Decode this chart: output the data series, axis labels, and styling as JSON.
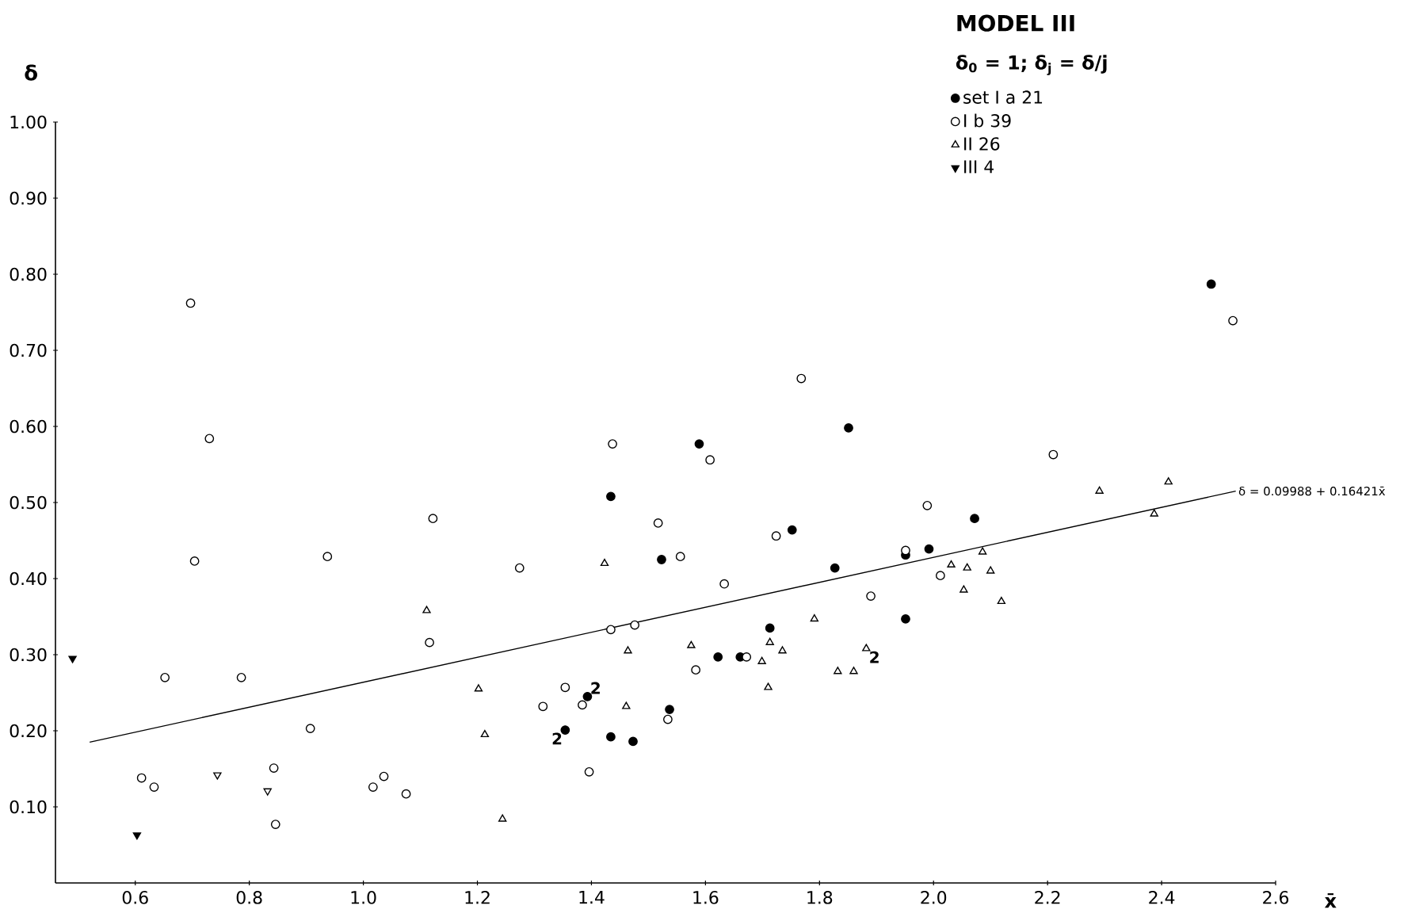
{
  "chart_data": {
    "type": "scatter",
    "title": "MODEL III",
    "subtitle": "δ$_{0}$ = 1;  δ$_{j}$ = δ/j",
    "xlabel": "x̄",
    "ylabel": "δ",
    "xlim": [
      0.46,
      2.6
    ],
    "ylim": [
      0,
      1.0
    ],
    "xticks": [
      0.6,
      0.8,
      {
        "value": 1.0,
        "label": "1.0"
      },
      1.2,
      1.4,
      1.6,
      1.8,
      {
        "value": 2.0,
        "label": "2.0"
      },
      2.2,
      2.4,
      2.6
    ],
    "yticks": [
      {
        "value": 0.1,
        "label": "0.10"
      },
      {
        "value": 0.2,
        "label": "0.20"
      },
      {
        "value": 0.3,
        "label": "0.30"
      },
      {
        "value": 0.4,
        "label": "0.40"
      },
      {
        "value": 0.5,
        "label": "0.50"
      },
      {
        "value": 0.6,
        "label": "0.60"
      },
      {
        "value": 0.7,
        "label": "0.70"
      },
      {
        "value": 0.8,
        "label": "0.80"
      },
      {
        "value": 0.9,
        "label": "0.90"
      },
      {
        "value": 1.0,
        "label": "1.00"
      }
    ],
    "legend": "top right",
    "series": [
      {
        "name": "set  I a   21",
        "color": "#000000",
        "marker": "circle",
        "x": [
          1.589,
          1.434,
          1.523,
          1.354,
          1.393,
          1.434,
          1.473,
          1.537,
          2.487,
          1.851,
          1.752,
          1.827,
          1.951,
          1.992,
          2.072,
          1.951,
          1.713,
          1.622,
          1.661
        ],
        "values": [
          0.577,
          0.508,
          0.425,
          0.201,
          0.245,
          0.192,
          0.186,
          0.228,
          0.787,
          0.598,
          0.464,
          0.414,
          0.431,
          0.439,
          0.479,
          0.347,
          0.335,
          0.297,
          0.297
        ]
      },
      {
        "name": "I b   39",
        "color": "#ffffff",
        "marker": "circle",
        "x": [
          0.697,
          0.73,
          1.437,
          1.608,
          2.525,
          1.768,
          2.21,
          1.989,
          1.724,
          1.556,
          1.633,
          1.951,
          2.012,
          1.89,
          1.583,
          1.672,
          0.704,
          0.937,
          1.122,
          1.274,
          1.517,
          1.116,
          1.434,
          1.476,
          0.652,
          0.786,
          1.354,
          1.315,
          1.384,
          1.534,
          0.907,
          0.611,
          0.633,
          0.843,
          0.846,
          1.017,
          1.036,
          1.075,
          1.396
        ],
        "values": [
          0.762,
          0.584,
          0.577,
          0.556,
          0.739,
          0.663,
          0.563,
          0.496,
          0.456,
          0.429,
          0.393,
          0.437,
          0.404,
          0.377,
          0.28,
          0.297,
          0.423,
          0.429,
          0.479,
          0.414,
          0.473,
          0.316,
          0.333,
          0.339,
          0.27,
          0.27,
          0.257,
          0.232,
          0.234,
          0.215,
          0.203,
          0.138,
          0.126,
          0.151,
          0.077,
          0.126,
          0.14,
          0.117,
          0.146
        ]
      },
      {
        "name": "II   26",
        "color": "#ffffff",
        "marker": "triangle",
        "x": [
          1.111,
          1.423,
          1.202,
          1.213,
          1.244,
          1.464,
          1.461,
          1.575,
          1.713,
          1.735,
          1.699,
          1.71,
          1.791,
          1.832,
          1.86,
          1.882,
          2.031,
          2.059,
          2.053,
          2.086,
          2.1,
          2.119,
          2.291,
          2.412,
          2.387
        ],
        "values": [
          0.358,
          0.42,
          0.255,
          0.195,
          0.084,
          0.305,
          0.232,
          0.312,
          0.316,
          0.305,
          0.291,
          0.257,
          0.347,
          0.278,
          0.278,
          0.308,
          0.418,
          0.414,
          0.385,
          0.435,
          0.41,
          0.37,
          0.515,
          0.527,
          0.485
        ]
      },
      {
        "name": "III   4",
        "color": "#000000",
        "marker": "triangle down",
        "x": [
          0.49,
          0.603
        ],
        "values": [
          0.295,
          0.063
        ]
      },
      {
        "color": "#ffffff",
        "marker": "triangle down",
        "x": [
          0.744,
          0.832
        ],
        "values": [
          0.142,
          0.121
        ]
      },
      {
        "type": "line",
        "color": "#000000",
        "x": [
          0.52,
          2.53
        ],
        "values": [
          0.185,
          0.515
        ]
      }
    ],
    "annotations": [
      {
        "text": "2",
        "x": 1.354,
        "y": 0.201
      },
      {
        "text": "2",
        "x": 1.393,
        "y": 0.245
      },
      {
        "text": "2",
        "x": 1.882,
        "y": 0.308
      },
      {
        "text": "δ = 0.09988 + 0.16421x̄",
        "x": 2.53,
        "y": 0.515
      }
    ]
  }
}
